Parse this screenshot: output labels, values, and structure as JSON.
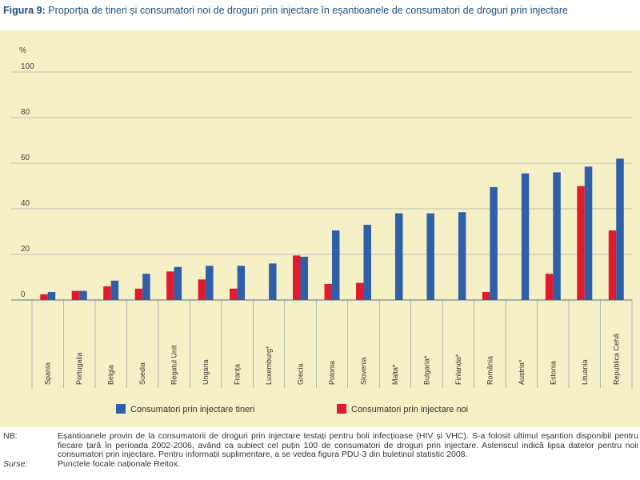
{
  "figure": {
    "label": "Figura 9:",
    "text": "Proporția de tineri și consumatori noi de droguri prin injectare în eșantioanele de consumatori de droguri prin injectare"
  },
  "chart_data": {
    "type": "bar",
    "ylabel": "%",
    "ylim": [
      0,
      100
    ],
    "yticks": [
      "0",
      "20",
      "40",
      "60",
      "80",
      "100"
    ],
    "categories": [
      "Spania",
      "Portugalia",
      "Belgia",
      "Suedia",
      "Regatul Unit",
      "Ungaria",
      "Franța",
      "Luxemburg*",
      "Grecia",
      "Polonia",
      "Slovenia",
      "Malta*",
      "Bulgaria*",
      "Finlanda*",
      "România",
      "Austria*",
      "Estonia",
      "Lituania",
      "Republica Cehă"
    ],
    "series": [
      {
        "name": "Consumatori prin injectare tineri",
        "color": "#2f5fa8",
        "values": [
          3.5,
          4,
          8.5,
          11.5,
          14.5,
          15,
          15,
          16,
          19,
          30.5,
          33,
          38,
          38,
          38.5,
          49.5,
          55.5,
          56,
          58.5,
          62
        ]
      },
      {
        "name": "Consumatori prin injectare noi",
        "color": "#e11b2e",
        "values": [
          2.5,
          4,
          6,
          5,
          12.5,
          9,
          5,
          null,
          19.5,
          7,
          7.5,
          null,
          null,
          null,
          3.5,
          null,
          11.5,
          50,
          30.5
        ]
      }
    ],
    "legend": "bottom",
    "grid": true
  },
  "notes": {
    "nb_label": "NB:",
    "nb_text": "Eșantioanele provin de la consumatorii de droguri prin injectare testați pentru boli infecțioase (HIV și VHC). S-a folosit ultimul eșantion disponibil pentru fiecare țară în perioada 2002-2006, având ca subiect cel puțin 100 de consumatori de droguri prin injectare. Asteriscul indică lipsa datelor pentru noii consumatori prin injectare. Pentru informații suplimentare, a se vedea figura PDU-3 din buletinul statistic 2008.",
    "surse_label": "Surse:",
    "surse_text": "Punctele focale naționale Reitox."
  }
}
